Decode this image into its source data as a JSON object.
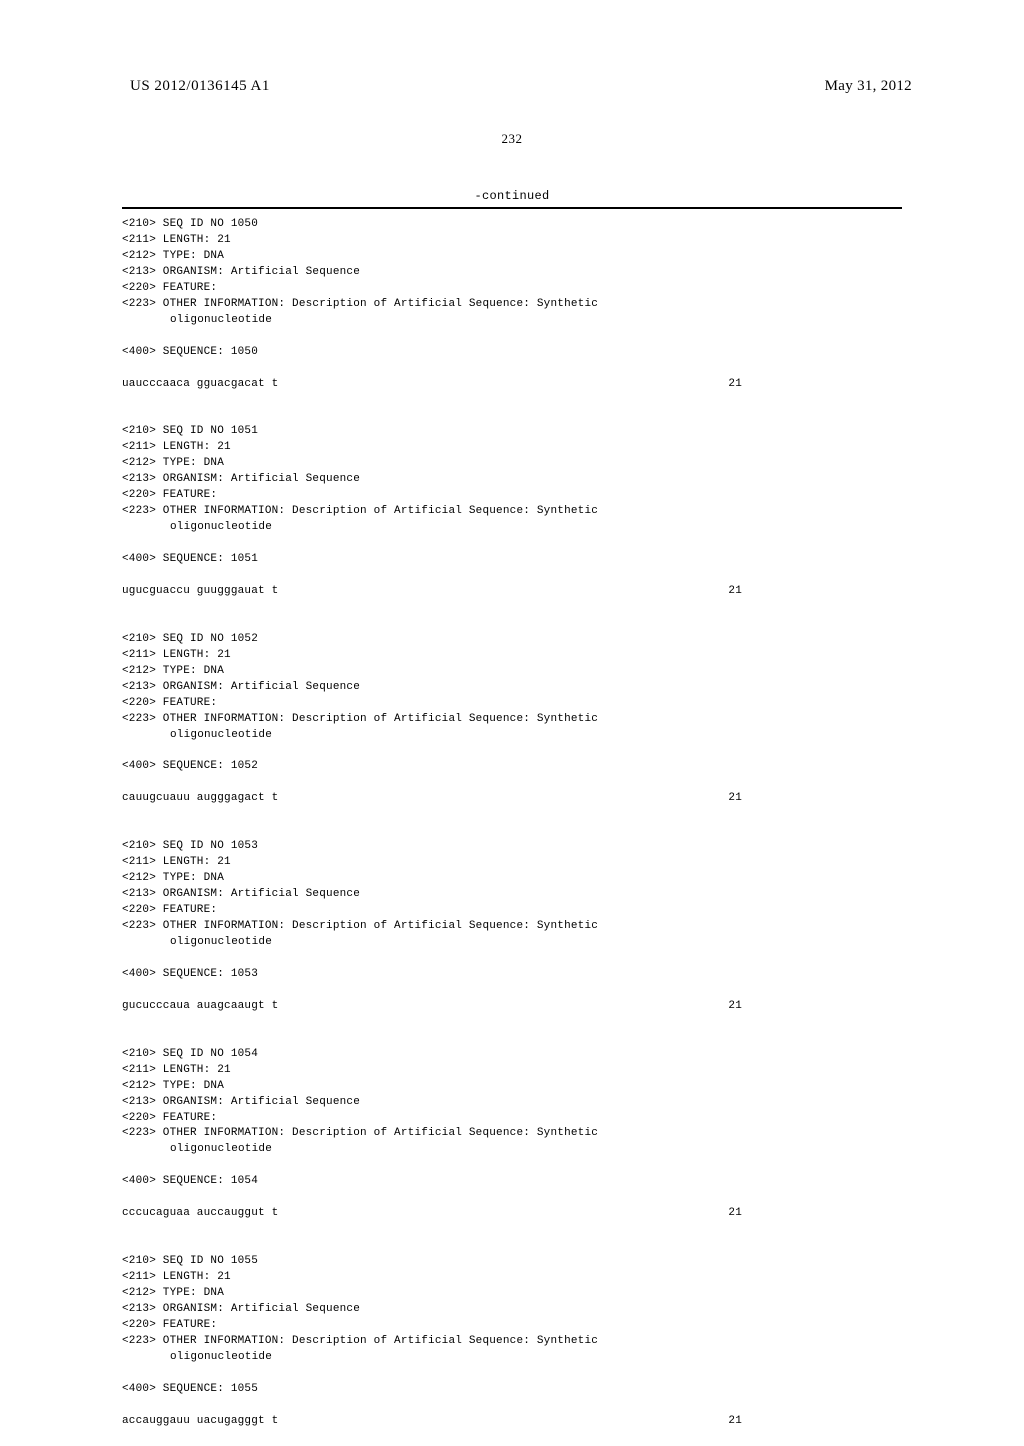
{
  "header": {
    "pubNumber": "US 2012/0136145 A1",
    "date": "May 31, 2012",
    "pageNumber": "232",
    "continued": "-continued"
  },
  "entries": [
    {
      "seqId": "<210> SEQ ID NO 1050",
      "length": "<211> LENGTH: 21",
      "type": "<212> TYPE: DNA",
      "organism": "<213> ORGANISM: Artificial Sequence",
      "feature": "<220> FEATURE:",
      "otherInfo": "<223> OTHER INFORMATION: Description of Artificial Sequence: Synthetic",
      "oligo": "oligonucleotide",
      "seqLabel": "<400> SEQUENCE: 1050",
      "sequence": "uaucccaaca gguacgacat t",
      "seqLen": "21"
    },
    {
      "seqId": "<210> SEQ ID NO 1051",
      "length": "<211> LENGTH: 21",
      "type": "<212> TYPE: DNA",
      "organism": "<213> ORGANISM: Artificial Sequence",
      "feature": "<220> FEATURE:",
      "otherInfo": "<223> OTHER INFORMATION: Description of Artificial Sequence: Synthetic",
      "oligo": "oligonucleotide",
      "seqLabel": "<400> SEQUENCE: 1051",
      "sequence": "ugucguaccu guugggauat t",
      "seqLen": "21"
    },
    {
      "seqId": "<210> SEQ ID NO 1052",
      "length": "<211> LENGTH: 21",
      "type": "<212> TYPE: DNA",
      "organism": "<213> ORGANISM: Artificial Sequence",
      "feature": "<220> FEATURE:",
      "otherInfo": "<223> OTHER INFORMATION: Description of Artificial Sequence: Synthetic",
      "oligo": "oligonucleotide",
      "seqLabel": "<400> SEQUENCE: 1052",
      "sequence": "cauugcuauu augggagact t",
      "seqLen": "21"
    },
    {
      "seqId": "<210> SEQ ID NO 1053",
      "length": "<211> LENGTH: 21",
      "type": "<212> TYPE: DNA",
      "organism": "<213> ORGANISM: Artificial Sequence",
      "feature": "<220> FEATURE:",
      "otherInfo": "<223> OTHER INFORMATION: Description of Artificial Sequence: Synthetic",
      "oligo": "oligonucleotide",
      "seqLabel": "<400> SEQUENCE: 1053",
      "sequence": "gucucccaua auagcaaugt t",
      "seqLen": "21"
    },
    {
      "seqId": "<210> SEQ ID NO 1054",
      "length": "<211> LENGTH: 21",
      "type": "<212> TYPE: DNA",
      "organism": "<213> ORGANISM: Artificial Sequence",
      "feature": "<220> FEATURE:",
      "otherInfo": "<223> OTHER INFORMATION: Description of Artificial Sequence: Synthetic",
      "oligo": "oligonucleotide",
      "seqLabel": "<400> SEQUENCE: 1054",
      "sequence": "cccucaguaa auccauggut t",
      "seqLen": "21"
    },
    {
      "seqId": "<210> SEQ ID NO 1055",
      "length": "<211> LENGTH: 21",
      "type": "<212> TYPE: DNA",
      "organism": "<213> ORGANISM: Artificial Sequence",
      "feature": "<220> FEATURE:",
      "otherInfo": "<223> OTHER INFORMATION: Description of Artificial Sequence: Synthetic",
      "oligo": "oligonucleotide",
      "seqLabel": "<400> SEQUENCE: 1055",
      "sequence": "accauggauu uacugagggt t",
      "seqLen": "21"
    }
  ]
}
